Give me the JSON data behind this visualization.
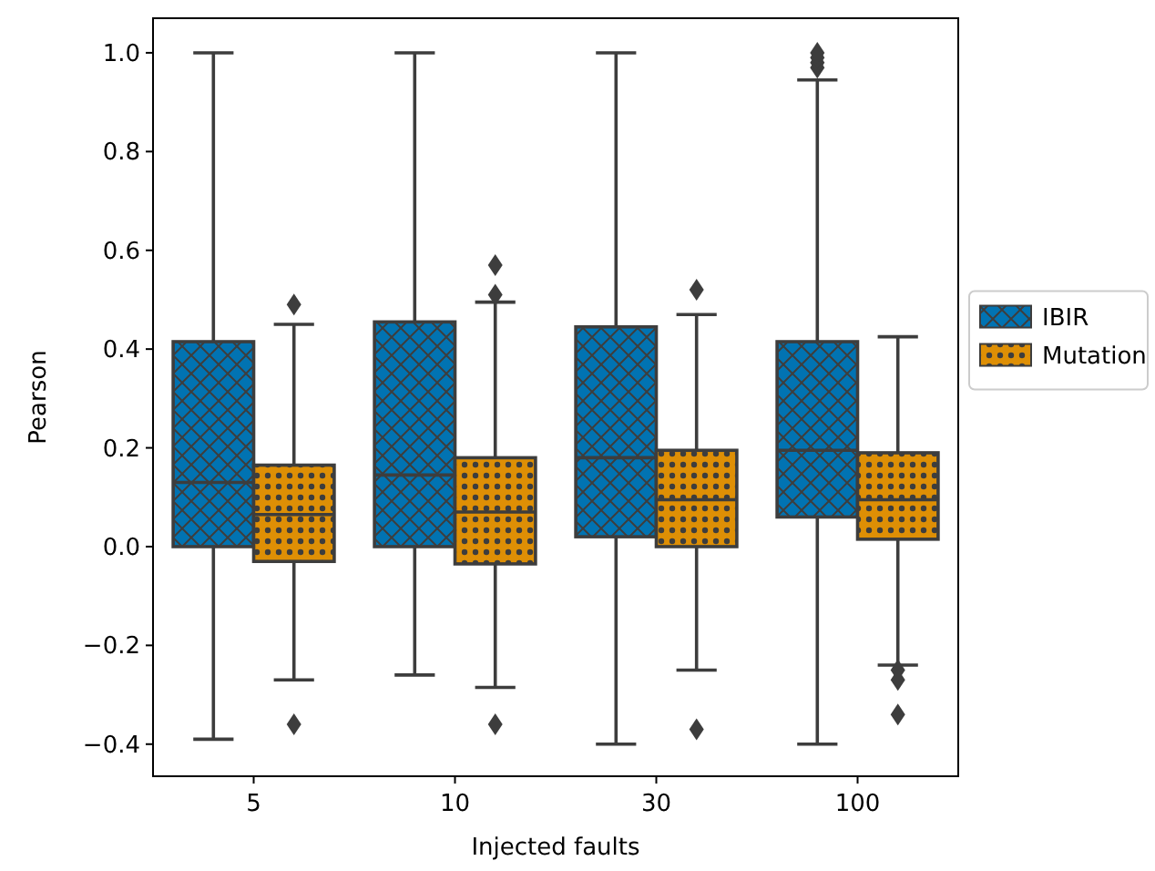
{
  "chart_data": {
    "type": "box",
    "xlabel": "Injected faults",
    "ylabel": "Pearson",
    "categories": [
      "5",
      "10",
      "30",
      "100"
    ],
    "ylim": [
      -0.465,
      1.07
    ],
    "yticks": [
      {
        "value": -0.4,
        "label": "−0.4"
      },
      {
        "value": -0.2,
        "label": "−0.2"
      },
      {
        "value": 0,
        "label": "0.0"
      },
      0.2,
      0.4,
      0.6,
      0.8,
      {
        "value": 1,
        "label": "1.0"
      }
    ],
    "legend": "right",
    "grid": false,
    "marker": "diamond",
    "series": [
      {
        "name": "IBIR",
        "color": "#0173b2",
        "boxes": [
          {
            "low": -0.39,
            "q1": 0.0,
            "median": 0.13,
            "q3": 0.415,
            "high": 1.0
          },
          {
            "low": -0.26,
            "q1": 0.0,
            "median": 0.145,
            "q3": 0.455,
            "high": 1.0
          },
          {
            "low": -0.4,
            "q1": 0.02,
            "median": 0.18,
            "q3": 0.445,
            "high": 1.0
          },
          {
            "low": -0.4,
            "q1": 0.06,
            "median": 0.195,
            "q3": 0.415,
            "high": 0.945,
            "outliers": [
              0.97,
              0.98,
              0.99,
              1.0
            ]
          }
        ]
      },
      {
        "name": "Mutation",
        "color": "#de8f05",
        "boxes": [
          {
            "low": -0.27,
            "q1": -0.03,
            "median": 0.065,
            "q3": 0.165,
            "high": 0.45,
            "outliers": [
              0.49,
              -0.36
            ]
          },
          {
            "low": -0.285,
            "q1": -0.035,
            "median": 0.07,
            "q3": 0.18,
            "high": 0.495,
            "outliers": [
              0.57,
              0.51,
              -0.36
            ]
          },
          {
            "low": -0.25,
            "q1": 0.0,
            "median": 0.095,
            "q3": 0.195,
            "high": 0.47,
            "outliers": [
              0.52,
              -0.37
            ]
          },
          {
            "low": -0.24,
            "q1": 0.015,
            "median": 0.095,
            "q3": 0.19,
            "high": 0.425,
            "outliers": [
              -0.25,
              -0.27,
              -0.34
            ]
          }
        ]
      }
    ]
  }
}
